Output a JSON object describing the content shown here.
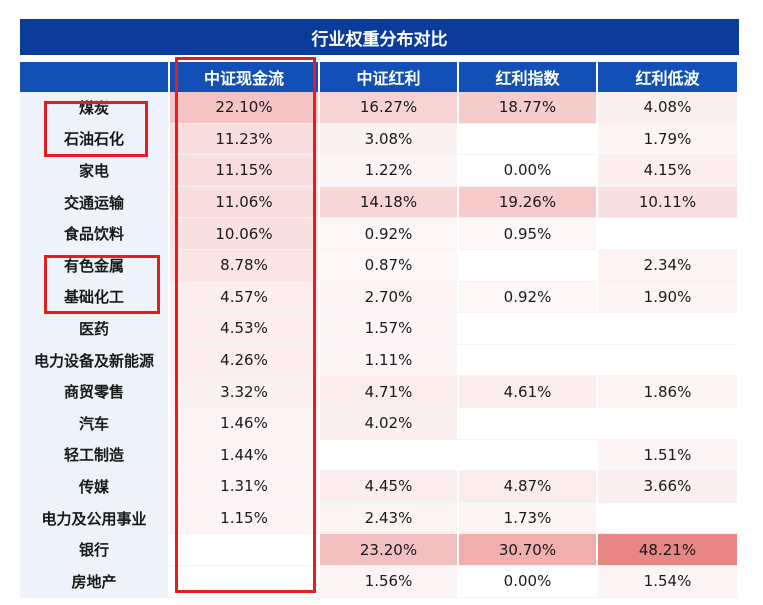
{
  "title": "行业权重分布对比",
  "columns": [
    "",
    "中证现金流",
    "中证红利",
    "红利指数",
    "红利低波"
  ],
  "rows": [
    {
      "industry": "煤炭",
      "values": [
        "22.10%",
        "16.27%",
        "18.77%",
        "4.08%"
      ],
      "shade": [
        0.36,
        0.26,
        0.3,
        0.06
      ]
    },
    {
      "industry": "石油石化",
      "values": [
        "11.23%",
        "3.08%",
        "",
        "1.79%"
      ],
      "shade": [
        0.18,
        0.05,
        0,
        0.03
      ]
    },
    {
      "industry": "家电",
      "values": [
        "11.15%",
        "1.22%",
        "0.00%",
        "4.15%"
      ],
      "shade": [
        0.18,
        0.02,
        0,
        0.07
      ]
    },
    {
      "industry": "交通运输",
      "values": [
        "11.06%",
        "14.18%",
        "19.26%",
        "10.11%"
      ],
      "shade": [
        0.18,
        0.23,
        0.31,
        0.16
      ]
    },
    {
      "industry": "食品饮料",
      "values": [
        "10.06%",
        "0.92%",
        "0.95%",
        ""
      ],
      "shade": [
        0.16,
        0.01,
        0.01,
        0
      ]
    },
    {
      "industry": "有色金属",
      "values": [
        "8.78%",
        "0.87%",
        "",
        "2.34%"
      ],
      "shade": [
        0.14,
        0.01,
        0,
        0.04
      ]
    },
    {
      "industry": "基础化工",
      "values": [
        "4.57%",
        "2.70%",
        "0.92%",
        "1.90%"
      ],
      "shade": [
        0.07,
        0.04,
        0.01,
        0.03
      ]
    },
    {
      "industry": "医药",
      "values": [
        "4.53%",
        "1.57%",
        "",
        ""
      ],
      "shade": [
        0.07,
        0.02,
        0,
        0
      ]
    },
    {
      "industry": "电力设备及新能源",
      "values": [
        "4.26%",
        "1.11%",
        "",
        ""
      ],
      "shade": [
        0.07,
        0.02,
        0,
        0
      ]
    },
    {
      "industry": "商贸零售",
      "values": [
        "3.32%",
        "4.71%",
        "4.61%",
        "1.86%"
      ],
      "shade": [
        0.05,
        0.08,
        0.07,
        0.03
      ]
    },
    {
      "industry": "汽车",
      "values": [
        "1.46%",
        "4.02%",
        "",
        ""
      ],
      "shade": [
        0.02,
        0.06,
        0,
        0
      ]
    },
    {
      "industry": "轻工制造",
      "values": [
        "1.44%",
        "",
        "",
        "1.51%"
      ],
      "shade": [
        0.02,
        0,
        0,
        0.02
      ]
    },
    {
      "industry": "传媒",
      "values": [
        "1.31%",
        "4.45%",
        "4.87%",
        "3.66%"
      ],
      "shade": [
        0.02,
        0.07,
        0.08,
        0.06
      ]
    },
    {
      "industry": "电力及公用事业",
      "values": [
        "1.15%",
        "2.43%",
        "1.73%",
        ""
      ],
      "shade": [
        0.02,
        0.04,
        0.03,
        0
      ]
    },
    {
      "industry": "银行",
      "values": [
        "",
        "23.20%",
        "30.70%",
        "48.21%"
      ],
      "shade": [
        0,
        0.38,
        0.5,
        0.78
      ]
    },
    {
      "industry": "房地产",
      "values": [
        "",
        "1.56%",
        "0.00%",
        "1.54%"
      ],
      "shade": [
        0,
        0.02,
        0,
        0.02
      ]
    }
  ],
  "highlight_color": "#e21e1e",
  "heat_color": "#e05a5a"
}
